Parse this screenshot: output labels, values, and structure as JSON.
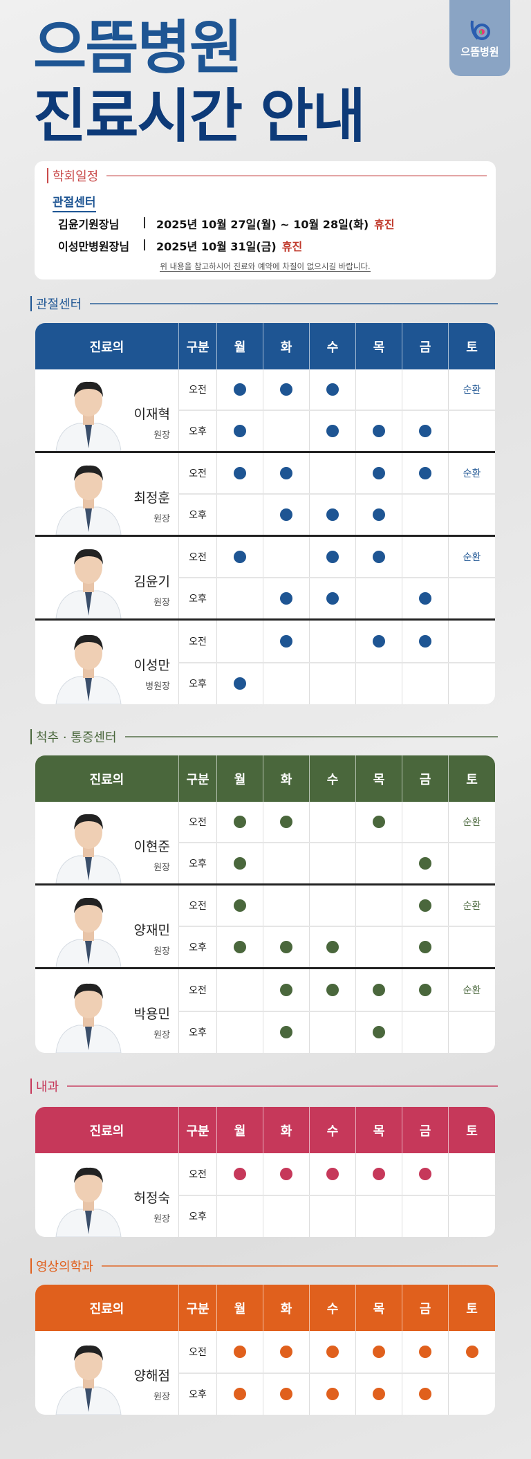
{
  "logo": {
    "text": "으뜸병원"
  },
  "title": {
    "line1": "으뜸병원",
    "line2": "진료시간 안내"
  },
  "notice": {
    "heading": "학회일정",
    "heading_color": "#c94a4a",
    "center": "관절센터",
    "rows": [
      {
        "who": "김윤기원장님",
        "sep": "|",
        "date": "2025년 10월 27일(월) ~ 10월 28일(화)",
        "status": "휴진"
      },
      {
        "who": "이성만병원장님",
        "sep": "|",
        "date": "2025년 10월 31일(금)",
        "status": "휴진"
      }
    ],
    "footer": "위 내용을 참고하시어 진료와 예약에 차질이 없으시길 바랍니다."
  },
  "headers": {
    "doctor": "진료의",
    "period": "구분",
    "days": [
      "월",
      "화",
      "수",
      "목",
      "금",
      "토"
    ]
  },
  "periods": [
    "오전",
    "오후"
  ],
  "sections": [
    {
      "name": "관절센터",
      "color": "#1e5593",
      "doctors": [
        {
          "name": "이재혁",
          "position": "원장",
          "am": [
            "o",
            "o",
            "o",
            "",
            "",
            "순환"
          ],
          "pm": [
            "o",
            "",
            "o",
            "o",
            "o",
            ""
          ]
        },
        {
          "name": "최정훈",
          "position": "원장",
          "am": [
            "o",
            "o",
            "",
            "o",
            "o",
            "순환"
          ],
          "pm": [
            "",
            "o",
            "o",
            "o",
            "",
            ""
          ]
        },
        {
          "name": "김윤기",
          "position": "원장",
          "am": [
            "o",
            "",
            "o",
            "o",
            "",
            "순환"
          ],
          "pm": [
            "",
            "o",
            "o",
            "",
            "o",
            ""
          ]
        },
        {
          "name": "이성만",
          "position": "병원장",
          "am": [
            "",
            "o",
            "",
            "o",
            "o",
            ""
          ],
          "pm": [
            "o",
            "",
            "",
            "",
            "",
            ""
          ]
        }
      ]
    },
    {
      "name": "척추 · 통증센터",
      "color": "#4a673c",
      "doctors": [
        {
          "name": "이현준",
          "position": "원장",
          "am": [
            "o",
            "o",
            "",
            "o",
            "",
            "순환"
          ],
          "pm": [
            "o",
            "",
            "",
            "",
            "o",
            ""
          ]
        },
        {
          "name": "양재민",
          "position": "원장",
          "am": [
            "o",
            "",
            "",
            "",
            "o",
            "순환"
          ],
          "pm": [
            "o",
            "o",
            "o",
            "",
            "o",
            ""
          ]
        },
        {
          "name": "박용민",
          "position": "원장",
          "am": [
            "",
            "o",
            "o",
            "o",
            "o",
            "순환"
          ],
          "pm": [
            "",
            "o",
            "",
            "o",
            "",
            ""
          ]
        }
      ]
    },
    {
      "name": "내과",
      "color": "#c6385a",
      "doctors": [
        {
          "name": "허정숙",
          "position": "원장",
          "am": [
            "o",
            "o",
            "o",
            "o",
            "o",
            ""
          ],
          "pm": [
            "",
            "",
            "",
            "",
            "",
            ""
          ]
        }
      ]
    },
    {
      "name": "영상의학과",
      "color": "#e0601d",
      "doctors": [
        {
          "name": "양해점",
          "position": "원장",
          "am": [
            "o",
            "o",
            "o",
            "o",
            "o",
            "o"
          ],
          "pm": [
            "o",
            "o",
            "o",
            "o",
            "o",
            ""
          ]
        }
      ]
    }
  ]
}
